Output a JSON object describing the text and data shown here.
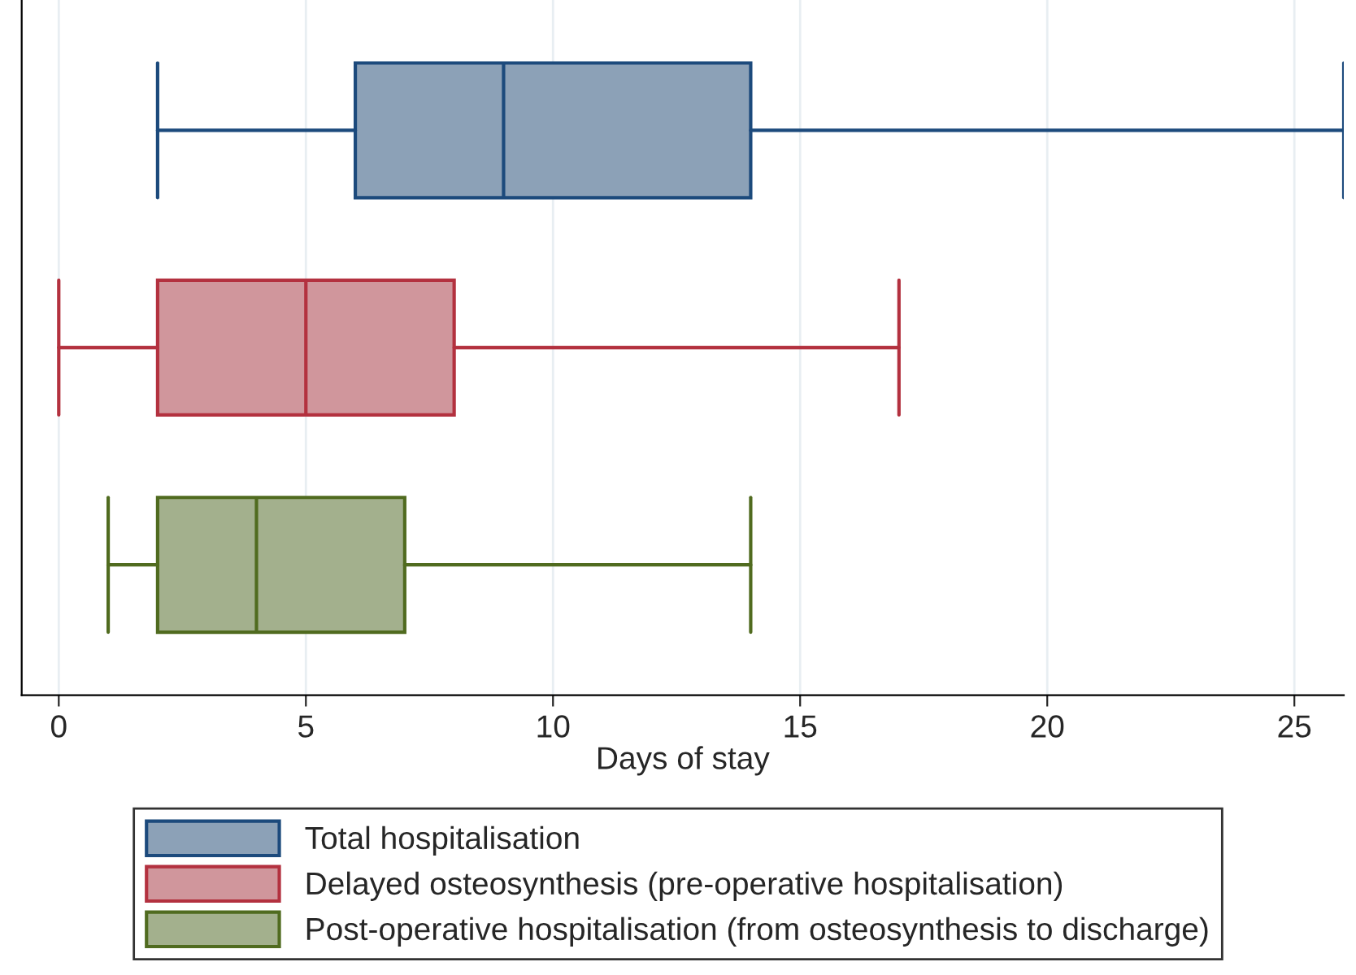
{
  "chart_data": {
    "type": "box",
    "orientation": "horizontal",
    "xlabel": "Days of stay",
    "categories": [
      null,
      null,
      null
    ],
    "series": [
      {
        "name": "Total hospitalisation",
        "color": "#1c4a7c",
        "boxes": [
          {
            "low": 2,
            "q1": 6,
            "median": 9,
            "q3": 14,
            "high": 26
          },
          null,
          null
        ]
      },
      {
        "name": "Delayed osteosynthesis (pre-operative hospitalisation)",
        "color": "#b3313f",
        "boxes": [
          null,
          {
            "low": 0,
            "q1": 2,
            "median": 5,
            "q3": 8,
            "high": 17
          },
          null
        ]
      },
      {
        "name": "Post-operative hospitalisation (from osteosynthesis to discharge)",
        "color": "#506b1f",
        "boxes": [
          null,
          null,
          {
            "low": 1,
            "q1": 2,
            "median": 4,
            "q3": 7,
            "high": 14
          }
        ]
      }
    ],
    "xlim": [
      -0.75,
      26
    ],
    "xticks": [
      0,
      5,
      10,
      15,
      20,
      25
    ],
    "grid": "x",
    "legend": "bottom",
    "tick_labels": "x"
  }
}
